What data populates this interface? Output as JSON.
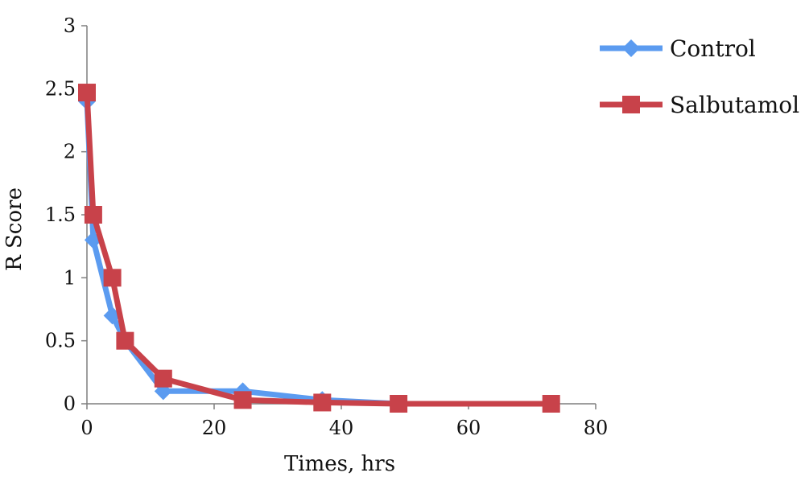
{
  "chart_data": {
    "type": "line",
    "xlabel": "Times, hrs",
    "ylabel": "R Score",
    "xlim": [
      0,
      80
    ],
    "ylim": [
      0,
      3
    ],
    "x_ticks": [
      0,
      20,
      40,
      60,
      80
    ],
    "y_ticks": [
      0,
      0.5,
      1,
      1.5,
      2,
      2.5,
      3
    ],
    "y_tick_labels": [
      "0",
      "0.5",
      "1",
      "1.5",
      "2",
      "2.5",
      "3"
    ],
    "grid": false,
    "legend_position": "right",
    "series": [
      {
        "name": "Control",
        "color": "#5b9bf0",
        "marker": "diamond",
        "points": [
          [
            0,
            2.4
          ],
          [
            1,
            1.3
          ],
          [
            4,
            0.7
          ],
          [
            6,
            0.5
          ],
          [
            12,
            0.1
          ],
          [
            24.5,
            0.1
          ],
          [
            37,
            0.03
          ],
          [
            49,
            0.0
          ],
          [
            73,
            0.0
          ]
        ]
      },
      {
        "name": "Salbutamol",
        "color": "#c8424a",
        "marker": "square",
        "points": [
          [
            0,
            2.47
          ],
          [
            1,
            1.5
          ],
          [
            4,
            1.0
          ],
          [
            6,
            0.5
          ],
          [
            12,
            0.2
          ],
          [
            24.5,
            0.03
          ],
          [
            37,
            0.01
          ],
          [
            49,
            0.0
          ],
          [
            73,
            0.0
          ]
        ]
      }
    ]
  }
}
